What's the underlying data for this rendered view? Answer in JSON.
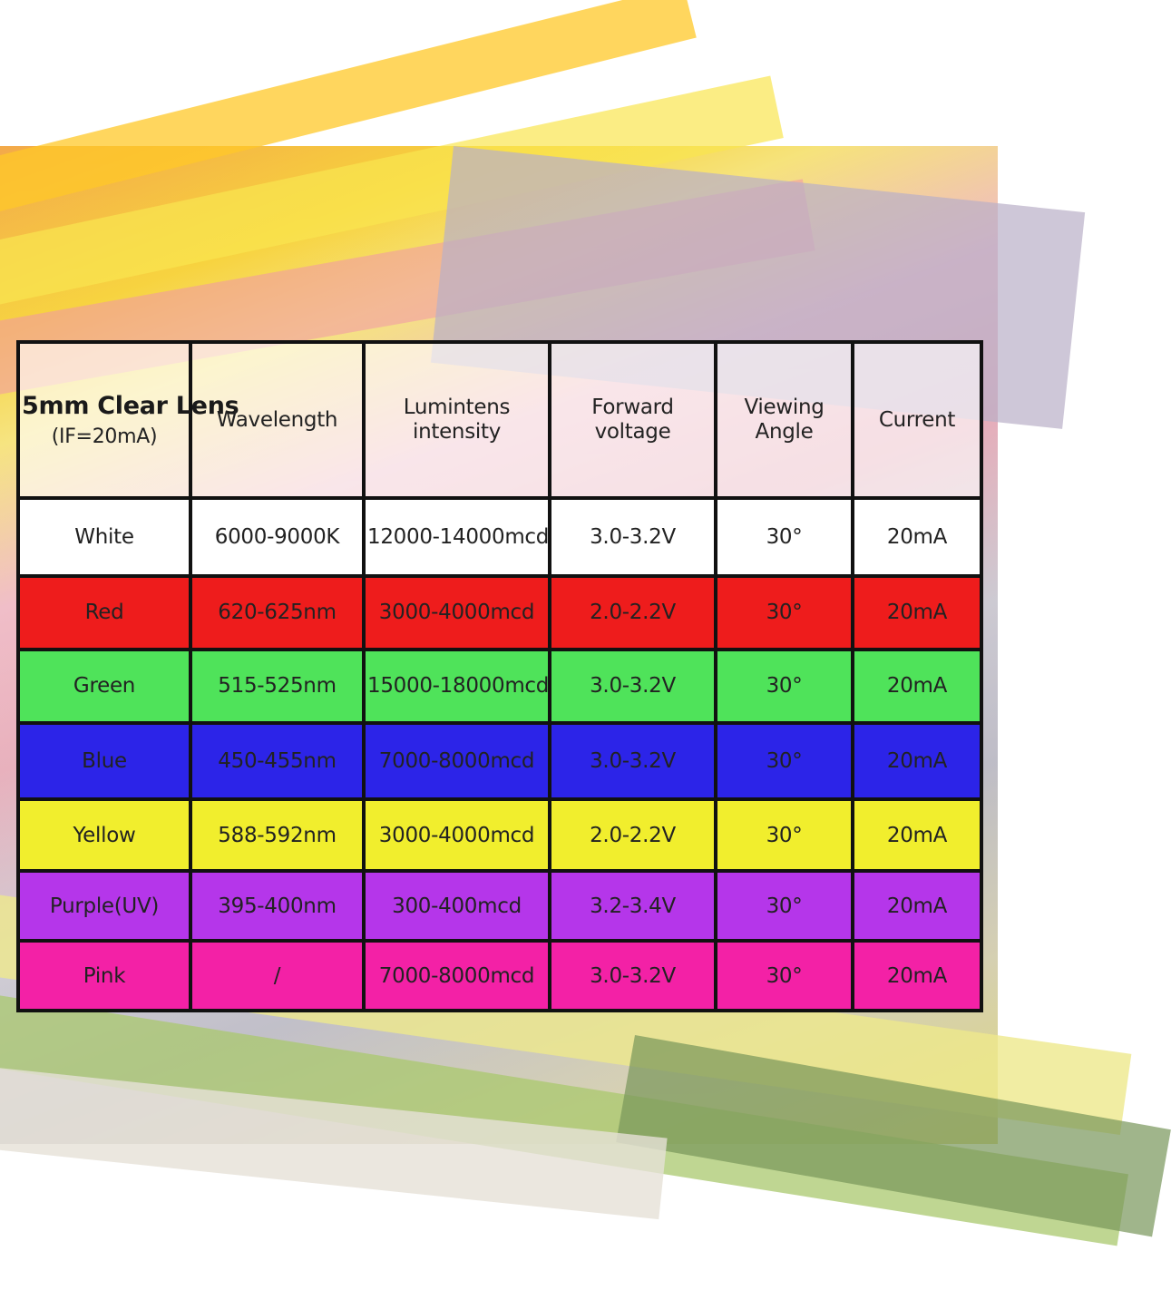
{
  "header": {
    "product_title": "5mm Clear Lens",
    "product_condition": "(IF=20mA)",
    "columns": [
      [
        "Wavelength"
      ],
      [
        "Lumintens",
        "intensity"
      ],
      [
        "Forward",
        "voltage"
      ],
      [
        "Viewing",
        "Angle"
      ],
      [
        "Current"
      ]
    ]
  },
  "colors": {
    "White": "#ffffff",
    "Red": "#ee1c1c",
    "Green": "#4fe35a",
    "Blue": "#2c24e8",
    "Yellow": "#f1ee2d",
    "Purple(UV)": "#b536ea",
    "Pink": "#f321a6"
  },
  "rows": [
    {
      "color": "White",
      "wavelength": "6000-9000K",
      "intensity": "12000-14000mcd",
      "voltage": "3.0-3.2V",
      "angle": "30°",
      "current": "20mA"
    },
    {
      "color": "Red",
      "wavelength": "620-625nm",
      "intensity": "3000-4000mcd",
      "voltage": "2.0-2.2V",
      "angle": "30°",
      "current": "20mA"
    },
    {
      "color": "Green",
      "wavelength": "515-525nm",
      "intensity": "15000-18000mcd",
      "voltage": "3.0-3.2V",
      "angle": "30°",
      "current": "20mA"
    },
    {
      "color": "Blue",
      "wavelength": "450-455nm",
      "intensity": "7000-8000mcd",
      "voltage": "3.0-3.2V",
      "angle": "30°",
      "current": "20mA"
    },
    {
      "color": "Yellow",
      "wavelength": "588-592nm",
      "intensity": "3000-4000mcd",
      "voltage": "2.0-2.2V",
      "angle": "30°",
      "current": "20mA"
    },
    {
      "color": "Purple(UV)",
      "wavelength": "395-400nm",
      "intensity": "300-400mcd",
      "voltage": "3.2-3.4V",
      "angle": "30°",
      "current": "20mA"
    },
    {
      "color": "Pink",
      "wavelength": "/",
      "intensity": "7000-8000mcd",
      "voltage": "3.0-3.2V",
      "angle": "30°",
      "current": "20mA"
    }
  ]
}
